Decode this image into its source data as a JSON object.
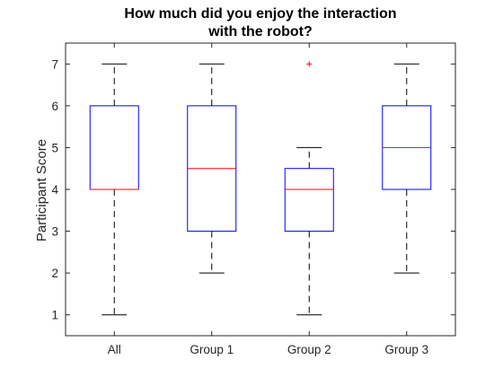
{
  "chart_data": {
    "type": "boxplot",
    "title": [
      "How much did you enjoy the interaction",
      "with the robot?"
    ],
    "xlabel": "",
    "ylabel": "Participant Score",
    "ylim": [
      0.5,
      7.5
    ],
    "yticks": [
      1,
      2,
      3,
      4,
      5,
      6,
      7
    ],
    "categories": [
      "All",
      "Group 1",
      "Group 2",
      "Group 3"
    ],
    "boxes": [
      {
        "category": "All",
        "whisker_low": 1,
        "q1": 4,
        "median": 4,
        "q3": 6,
        "whisker_high": 7,
        "outliers": []
      },
      {
        "category": "Group 1",
        "whisker_low": 2,
        "q1": 3,
        "median": 4.5,
        "q3": 6,
        "whisker_high": 7,
        "outliers": []
      },
      {
        "category": "Group 2",
        "whisker_low": 1,
        "q1": 3,
        "median": 4,
        "q3": 4.5,
        "whisker_high": 5,
        "outliers": [
          7
        ]
      },
      {
        "category": "Group 3",
        "whisker_low": 2,
        "q1": 4,
        "median": 5,
        "q3": 6,
        "whisker_high": 7,
        "outliers": []
      }
    ],
    "grid": false,
    "colors": {
      "box": "#0000ff",
      "median": "#ff0000",
      "whisker": "#000000",
      "outlier": "#ff0000",
      "axis": "#262626"
    }
  }
}
